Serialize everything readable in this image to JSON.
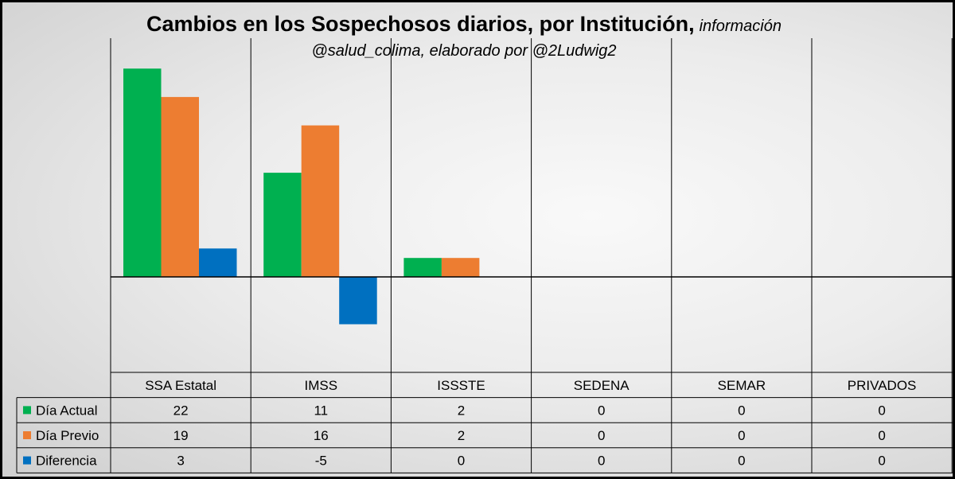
{
  "title": "Cambios en los Sospechosos diarios, por Institución,",
  "title_suffix": "información",
  "subtitle": "@salud_colima, elaborado por @2Ludwig2",
  "chart_data": {
    "type": "bar",
    "categories": [
      "SSA Estatal",
      "IMSS",
      "ISSSTE",
      "SEDENA",
      "SEMAR",
      "PRIVADOS"
    ],
    "series": [
      {
        "name": "Día Actual",
        "values": [
          22,
          11,
          2,
          0,
          0,
          0
        ],
        "color": "#00b050"
      },
      {
        "name": "Día Previo",
        "values": [
          19,
          16,
          2,
          0,
          0,
          0
        ],
        "color": "#ed7d31"
      },
      {
        "name": "Diferencia",
        "values": [
          3,
          -5,
          0,
          0,
          0,
          0
        ],
        "color": "#0070c0"
      }
    ],
    "ylim": [
      -10,
      25
    ],
    "data_table": true,
    "grid": "vertical category separators"
  }
}
